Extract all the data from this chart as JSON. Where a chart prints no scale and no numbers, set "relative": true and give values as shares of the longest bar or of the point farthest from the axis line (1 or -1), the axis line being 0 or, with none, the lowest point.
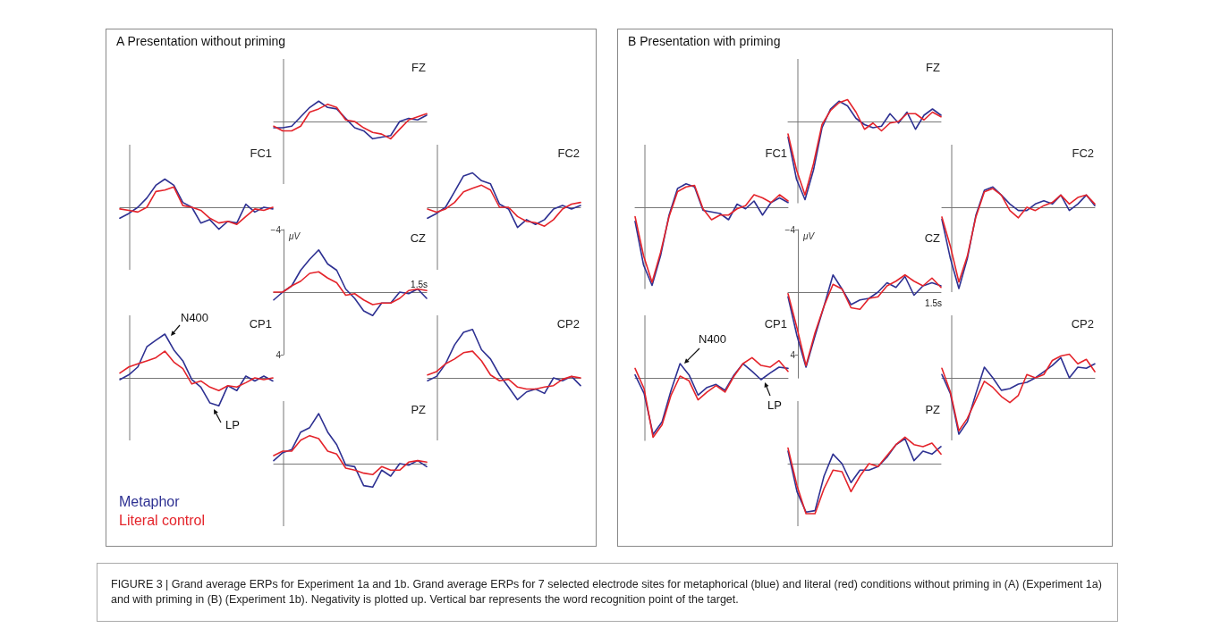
{
  "chart_data": [
    {
      "type": "line",
      "title": "FZ",
      "subtitle": "A  Presentation without priming",
      "relative": true,
      "categories": [
        null,
        null,
        null,
        null,
        null,
        null,
        null,
        null,
        null,
        null,
        null,
        null,
        null,
        null,
        null,
        null,
        null,
        null
      ],
      "series": [
        {
          "color": "#2e3192",
          "values": [
            -0.31,
            -0.31,
            -0.23,
            0.23,
            0.69,
            1,
            0.69,
            0.62,
            0.15,
            -0.31,
            -0.46,
            -0.85,
            -0.77,
            -0.69,
            0,
            0.15,
            0.08,
            0.31
          ]
        },
        {
          "color": "#e4242b",
          "values": [
            -0.23,
            -0.46,
            -0.46,
            -0.23,
            0.46,
            0.62,
            0.85,
            0.69,
            0.08,
            0,
            -0.31,
            -0.54,
            -0.62,
            -0.85,
            -0.38,
            0.08,
            0.23,
            0.38
          ]
        }
      ],
      "grid": false,
      "marker": "none"
    },
    {
      "type": "line",
      "title": "FC1",
      "relative": true,
      "categories": [
        null,
        null,
        null,
        null,
        null,
        null,
        null,
        null,
        null,
        null,
        null,
        null,
        null,
        null,
        null,
        null,
        null,
        null
      ],
      "series": [
        {
          "color": "#2e3192",
          "values": [
            -0.39,
            -0.22,
            0,
            0.33,
            0.78,
            1,
            0.78,
            0.17,
            0,
            -0.56,
            -0.44,
            -0.78,
            -0.5,
            -0.56,
            0.11,
            -0.17,
            0,
            -0.06
          ]
        },
        {
          "color": "#e4242b",
          "values": [
            -0.06,
            -0.11,
            -0.17,
            0,
            0.56,
            0.61,
            0.72,
            0.06,
            0,
            -0.11,
            -0.39,
            -0.56,
            -0.5,
            -0.61,
            -0.33,
            -0.06,
            -0.11,
            0
          ]
        }
      ],
      "grid": false,
      "marker": "none"
    },
    {
      "type": "line",
      "title": "FC2",
      "relative": true,
      "categories": [
        null,
        null,
        null,
        null,
        null,
        null,
        null,
        null,
        null,
        null,
        null,
        null,
        null,
        null,
        null,
        null,
        null,
        null
      ],
      "series": [
        {
          "color": "#2e3192",
          "values": [
            -0.32,
            -0.18,
            0,
            0.45,
            0.91,
            1,
            0.77,
            0.68,
            0.09,
            -0.05,
            -0.59,
            -0.36,
            -0.5,
            -0.36,
            -0.05,
            0.05,
            -0.05,
            0.05
          ]
        },
        {
          "color": "#e4242b",
          "values": [
            -0.05,
            -0.14,
            -0.05,
            0.14,
            0.45,
            0.55,
            0.64,
            0.5,
            0,
            0,
            -0.27,
            -0.41,
            -0.45,
            -0.55,
            -0.36,
            -0.05,
            0.09,
            0.14
          ]
        }
      ],
      "grid": false,
      "marker": "none"
    },
    {
      "type": "line",
      "title": "CZ",
      "ylabel": "μV",
      "categories": [
        null,
        null,
        null,
        null,
        null,
        null,
        null,
        null,
        null,
        null,
        null,
        null,
        null,
        null,
        null,
        null,
        null,
        null
      ],
      "series": [
        {
          "color": "#2e3192",
          "values": [
            0.5,
            0,
            -0.4,
            -1.4,
            -2.1,
            -2.7,
            -1.8,
            -1.4,
            -0.2,
            0.4,
            1.2,
            1.5,
            0.7,
            0.7,
            0,
            0.1,
            -0.2,
            0.4
          ]
        },
        {
          "color": "#e4242b",
          "values": [
            0,
            0,
            -0.4,
            -0.7,
            -1.2,
            -1.3,
            -0.9,
            -0.6,
            0.2,
            0.1,
            0.5,
            0.8,
            0.7,
            0.7,
            0.4,
            -0.1,
            -0.2,
            -0.1
          ]
        }
      ],
      "annotations": [
        "1.5s"
      ],
      "ylim": [
        4,
        -4
      ],
      "yticks": [
        {
          "value": -4,
          "label": "−4"
        },
        4
      ],
      "tick_labels": "y",
      "grid": false,
      "marker": "none"
    },
    {
      "type": "line",
      "title": "CP1",
      "relative": true,
      "categories": [
        null,
        null,
        null,
        null,
        null,
        null,
        null,
        null,
        null,
        null,
        null,
        null,
        null,
        null,
        null,
        null,
        null,
        null
      ],
      "series": [
        {
          "name": "Metaphor",
          "color": "#2e3192",
          "values": [
            -0.04,
            0.07,
            0.25,
            0.71,
            0.86,
            1,
            0.64,
            0.39,
            -0.04,
            -0.21,
            -0.57,
            -0.64,
            -0.18,
            -0.29,
            0.04,
            -0.07,
            0.04,
            -0.07
          ]
        },
        {
          "name": "Literal control",
          "color": "#e4242b",
          "values": [
            0.11,
            0.25,
            0.32,
            0.39,
            0.46,
            0.61,
            0.36,
            0.21,
            -0.14,
            -0.07,
            -0.21,
            -0.29,
            -0.18,
            -0.21,
            -0.11,
            0,
            -0.04,
            0
          ]
        }
      ],
      "annotations": [
        "N400",
        "LP"
      ],
      "grid": false,
      "marker": "none"
    },
    {
      "type": "line",
      "title": "CP2",
      "relative": true,
      "categories": [
        null,
        null,
        null,
        null,
        null,
        null,
        null,
        null,
        null,
        null,
        null,
        null,
        null,
        null,
        null,
        null,
        null,
        null
      ],
      "series": [
        {
          "color": "#2e3192",
          "values": [
            -0.06,
            0.03,
            0.29,
            0.68,
            0.94,
            1,
            0.58,
            0.39,
            0.06,
            -0.19,
            -0.45,
            -0.29,
            -0.23,
            -0.32,
            0,
            -0.06,
            0.03,
            -0.16
          ]
        },
        {
          "color": "#e4242b",
          "values": [
            0.06,
            0.13,
            0.29,
            0.39,
            0.52,
            0.55,
            0.35,
            0.06,
            -0.06,
            -0.03,
            -0.19,
            -0.23,
            -0.23,
            -0.19,
            -0.16,
            -0.03,
            0.03,
            0
          ]
        }
      ],
      "grid": false,
      "marker": "none"
    },
    {
      "type": "line",
      "title": "PZ",
      "relative": true,
      "categories": [
        null,
        null,
        null,
        null,
        null,
        null,
        null,
        null,
        null,
        null,
        null,
        null,
        null,
        null,
        null,
        null,
        null,
        null
      ],
      "series": [
        {
          "color": "#2e3192",
          "values": [
            0.06,
            0.22,
            0.28,
            0.63,
            0.72,
            1,
            0.63,
            0.38,
            -0.03,
            -0.06,
            -0.44,
            -0.47,
            -0.13,
            -0.25,
            0,
            -0.03,
            0.06,
            -0.06
          ]
        },
        {
          "color": "#e4242b",
          "values": [
            0.16,
            0.25,
            0.25,
            0.47,
            0.56,
            0.5,
            0.25,
            0.19,
            -0.09,
            -0.13,
            -0.19,
            -0.22,
            -0.06,
            -0.13,
            -0.13,
            0.03,
            0.06,
            0.03
          ]
        }
      ],
      "grid": false,
      "marker": "none"
    },
    {
      "type": "line",
      "title": "FZ",
      "subtitle": "B  Presentation with priming",
      "relative": true,
      "categories": [
        null,
        null,
        null,
        null,
        null,
        null,
        null,
        null,
        null,
        null,
        null,
        null,
        null,
        null,
        null,
        null,
        null,
        null,
        null
      ],
      "series": [
        {
          "color": "#2e3192",
          "values": [
            -0.2,
            -0.74,
            -1,
            -0.62,
            -0.08,
            0.16,
            0.26,
            0.2,
            0.04,
            -0.04,
            -0.08,
            -0.06,
            0.1,
            -0.02,
            0.12,
            -0.1,
            0.08,
            0.16,
            0.08
          ]
        },
        {
          "color": "#e4242b",
          "values": [
            -0.16,
            -0.62,
            -0.94,
            -0.54,
            -0.04,
            0.14,
            0.24,
            0.28,
            0.12,
            -0.1,
            -0.02,
            -0.12,
            -0.02,
            0,
            0.1,
            0.1,
            0.02,
            0.12,
            0.06
          ]
        }
      ],
      "grid": false,
      "marker": "none"
    },
    {
      "type": "line",
      "title": "FC1",
      "relative": true,
      "categories": [
        null,
        null,
        null,
        null,
        null,
        null,
        null,
        null,
        null,
        null,
        null,
        null,
        null,
        null,
        null,
        null,
        null,
        null,
        null
      ],
      "series": [
        {
          "color": "#2e3192",
          "values": [
            -0.18,
            -0.74,
            -1,
            -0.62,
            -0.1,
            0.24,
            0.3,
            0.26,
            -0.04,
            -0.06,
            -0.08,
            -0.16,
            0.04,
            -0.02,
            0.08,
            -0.1,
            0.06,
            0.12,
            0.06
          ]
        },
        {
          "color": "#e4242b",
          "values": [
            -0.12,
            -0.62,
            -0.96,
            -0.58,
            -0.12,
            0.2,
            0.26,
            0.28,
            -0.02,
            -0.16,
            -0.1,
            -0.1,
            -0.02,
            0.02,
            0.16,
            0.12,
            0.06,
            0.16,
            0.08
          ]
        }
      ],
      "grid": false,
      "marker": "none"
    },
    {
      "type": "line",
      "title": "FC2",
      "relative": true,
      "categories": [
        null,
        null,
        null,
        null,
        null,
        null,
        null,
        null,
        null,
        null,
        null,
        null,
        null,
        null,
        null,
        null,
        null,
        null,
        null
      ],
      "series": [
        {
          "color": "#2e3192",
          "values": [
            -0.15,
            -0.63,
            -1,
            -0.63,
            -0.1,
            0.21,
            0.25,
            0.15,
            0.04,
            -0.04,
            -0.04,
            0.04,
            0.08,
            0.04,
            0.15,
            -0.04,
            0.04,
            0.15,
            0.02
          ]
        },
        {
          "color": "#e4242b",
          "values": [
            -0.12,
            -0.48,
            -0.92,
            -0.6,
            -0.12,
            0.19,
            0.23,
            0.15,
            -0.04,
            -0.13,
            0,
            -0.04,
            0.02,
            0.06,
            0.15,
            0.04,
            0.12,
            0.15,
            0.04
          ]
        }
      ],
      "grid": false,
      "marker": "none"
    },
    {
      "type": "line",
      "title": "CZ",
      "ylabel": "μV",
      "categories": [
        null,
        null,
        null,
        null,
        null,
        null,
        null,
        null,
        null,
        null,
        null,
        null,
        null,
        null,
        null,
        null,
        null,
        null
      ],
      "series": [
        {
          "color": "#2e3192",
          "values": [
            0.3,
            2.8,
            4.8,
            2.8,
            0.9,
            -1.1,
            -0.2,
            0.8,
            0.5,
            0.4,
            0,
            -0.6,
            -0.3,
            -1.0,
            0.2,
            -0.4,
            -0.6,
            -0.4
          ]
        },
        {
          "color": "#e4242b",
          "values": [
            0.1,
            2.3,
            4.7,
            2.6,
            0.9,
            -0.5,
            -0.2,
            1.0,
            1.1,
            0.4,
            0.3,
            -0.4,
            -0.7,
            -1.1,
            -0.7,
            -0.4,
            -0.9,
            -0.3
          ]
        }
      ],
      "annotations": [
        "1.5s"
      ],
      "ylim": [
        5.5,
        -4
      ],
      "yticks": [
        {
          "value": -4,
          "label": "−4"
        },
        4
      ],
      "tick_labels": "y",
      "grid": false,
      "marker": "none"
    },
    {
      "type": "line",
      "title": "CP1",
      "relative": true,
      "categories": [
        null,
        null,
        null,
        null,
        null,
        null,
        null,
        null,
        null,
        null,
        null,
        null,
        null,
        null,
        null,
        null,
        null,
        null
      ],
      "series": [
        {
          "color": "#2e3192",
          "values": [
            0.05,
            -0.26,
            -0.95,
            -0.74,
            -0.21,
            0.24,
            0.05,
            -0.29,
            -0.16,
            -0.11,
            -0.21,
            0.05,
            0.24,
            0.11,
            -0.03,
            0.08,
            0.18,
            0.16
          ]
        },
        {
          "color": "#e4242b",
          "values": [
            0.16,
            -0.18,
            -1,
            -0.79,
            -0.29,
            0.03,
            -0.05,
            -0.37,
            -0.24,
            -0.13,
            -0.24,
            0.03,
            0.24,
            0.34,
            0.21,
            0.18,
            0.29,
            0.11
          ]
        }
      ],
      "annotations": [
        "N400",
        "LP"
      ],
      "grid": false,
      "marker": "none"
    },
    {
      "type": "line",
      "title": "CP2",
      "relative": true,
      "categories": [
        null,
        null,
        null,
        null,
        null,
        null,
        null,
        null,
        null,
        null,
        null,
        null,
        null,
        null,
        null,
        null,
        null,
        null,
        null
      ],
      "series": [
        {
          "color": "#2e3192",
          "values": [
            0.06,
            -0.28,
            -1,
            -0.78,
            -0.28,
            0.19,
            0,
            -0.22,
            -0.19,
            -0.11,
            -0.08,
            0,
            0.11,
            0.22,
            0.36,
            0,
            0.19,
            0.17,
            0.25
          ]
        },
        {
          "color": "#e4242b",
          "values": [
            0.17,
            -0.25,
            -0.94,
            -0.72,
            -0.39,
            -0.06,
            -0.17,
            -0.33,
            -0.44,
            -0.31,
            0.06,
            0,
            0.06,
            0.31,
            0.39,
            0.42,
            0.25,
            0.33,
            0.11
          ]
        }
      ],
      "grid": false,
      "marker": "none"
    },
    {
      "type": "line",
      "title": "PZ",
      "relative": true,
      "categories": [
        null,
        null,
        null,
        null,
        null,
        null,
        null,
        null,
        null,
        null,
        null,
        null,
        null,
        null,
        null,
        null,
        null,
        null
      ],
      "series": [
        {
          "color": "#2e3192",
          "values": [
            0.25,
            -0.56,
            -0.97,
            -0.94,
            -0.25,
            0.19,
            0,
            -0.38,
            -0.13,
            -0.13,
            -0.06,
            0.13,
            0.38,
            0.5,
            0.06,
            0.25,
            0.19,
            0.34
          ]
        },
        {
          "color": "#e4242b",
          "values": [
            0.31,
            -0.44,
            -1,
            -1,
            -0.5,
            -0.13,
            -0.16,
            -0.56,
            -0.25,
            0,
            -0.06,
            0.16,
            0.38,
            0.53,
            0.38,
            0.34,
            0.41,
            0.19
          ]
        }
      ],
      "annotations": [
        "FIGURE 3 | Grand average ERPs for Experiment 1a and 1b. Grand average ERPs for 7 selected electrode sites for metaphorical (blue) and literal (red) conditions without priming in (A) (Experiment 1a) and with priming in (B) (Experiment 1b). Negativity is plotted up. Vertical bar represents the word recognition point of the target."
      ],
      "grid": false,
      "marker": "none"
    }
  ]
}
